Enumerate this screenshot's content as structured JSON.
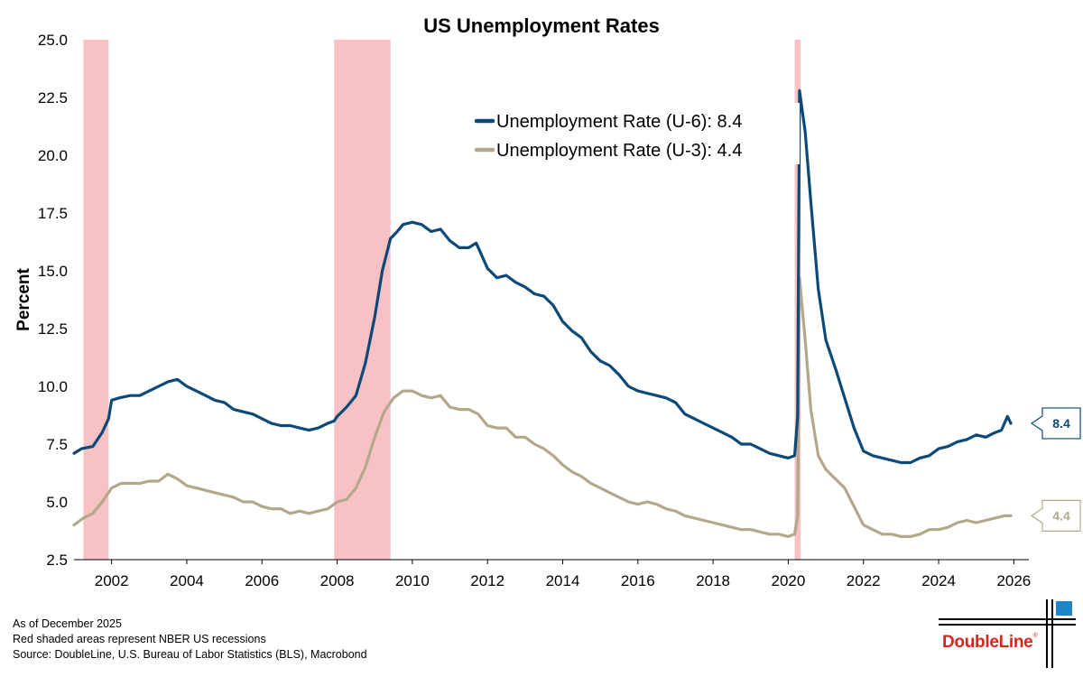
{
  "chart_data": {
    "type": "line",
    "title": "US Unemployment Rates",
    "xlabel": "",
    "ylabel": "Percent",
    "xlim": [
      2001.0,
      2026.4
    ],
    "ylim": [
      2.5,
      25.0
    ],
    "xticks": [
      2002,
      2004,
      2006,
      2008,
      2010,
      2012,
      2014,
      2016,
      2018,
      2020,
      2022,
      2024,
      2026
    ],
    "yticks": [
      "2.5",
      "5.0",
      "7.5",
      "10.0",
      "12.5",
      "15.0",
      "17.5",
      "20.0",
      "22.5",
      "25.0"
    ],
    "grid": false,
    "legend_position": "top-center",
    "recessions": [
      {
        "start": 2001.25,
        "end": 2001.92
      },
      {
        "start": 2007.92,
        "end": 2009.42
      },
      {
        "start": 2020.17,
        "end": 2020.33
      }
    ],
    "series": [
      {
        "name": "Unemployment Rate (U-6): 8.4",
        "color": "#0b4a78",
        "end_label": "8.4",
        "points": [
          [
            2001.0,
            7.1
          ],
          [
            2001.2,
            7.3
          ],
          [
            2001.5,
            7.4
          ],
          [
            2001.75,
            8.0
          ],
          [
            2001.92,
            8.6
          ],
          [
            2002.0,
            9.4
          ],
          [
            2002.2,
            9.5
          ],
          [
            2002.5,
            9.6
          ],
          [
            2002.75,
            9.6
          ],
          [
            2003.0,
            9.8
          ],
          [
            2003.25,
            10.0
          ],
          [
            2003.5,
            10.2
          ],
          [
            2003.75,
            10.3
          ],
          [
            2004.0,
            10.0
          ],
          [
            2004.25,
            9.8
          ],
          [
            2004.5,
            9.6
          ],
          [
            2004.75,
            9.4
          ],
          [
            2005.0,
            9.3
          ],
          [
            2005.25,
            9.0
          ],
          [
            2005.5,
            8.9
          ],
          [
            2005.75,
            8.8
          ],
          [
            2006.0,
            8.6
          ],
          [
            2006.25,
            8.4
          ],
          [
            2006.5,
            8.3
          ],
          [
            2006.75,
            8.3
          ],
          [
            2007.0,
            8.2
          ],
          [
            2007.25,
            8.1
          ],
          [
            2007.5,
            8.2
          ],
          [
            2007.75,
            8.4
          ],
          [
            2007.92,
            8.5
          ],
          [
            2008.0,
            8.7
          ],
          [
            2008.25,
            9.1
          ],
          [
            2008.5,
            9.6
          ],
          [
            2008.75,
            11.0
          ],
          [
            2009.0,
            13.0
          ],
          [
            2009.2,
            15.0
          ],
          [
            2009.42,
            16.4
          ],
          [
            2009.6,
            16.7
          ],
          [
            2009.75,
            17.0
          ],
          [
            2010.0,
            17.1
          ],
          [
            2010.25,
            17.0
          ],
          [
            2010.5,
            16.7
          ],
          [
            2010.75,
            16.8
          ],
          [
            2011.0,
            16.3
          ],
          [
            2011.25,
            16.0
          ],
          [
            2011.5,
            16.0
          ],
          [
            2011.7,
            16.2
          ],
          [
            2012.0,
            15.1
          ],
          [
            2012.25,
            14.7
          ],
          [
            2012.5,
            14.8
          ],
          [
            2012.75,
            14.5
          ],
          [
            2013.0,
            14.3
          ],
          [
            2013.25,
            14.0
          ],
          [
            2013.5,
            13.9
          ],
          [
            2013.75,
            13.5
          ],
          [
            2014.0,
            12.8
          ],
          [
            2014.25,
            12.4
          ],
          [
            2014.5,
            12.1
          ],
          [
            2014.75,
            11.5
          ],
          [
            2015.0,
            11.1
          ],
          [
            2015.25,
            10.9
          ],
          [
            2015.5,
            10.5
          ],
          [
            2015.75,
            10.0
          ],
          [
            2016.0,
            9.8
          ],
          [
            2016.25,
            9.7
          ],
          [
            2016.5,
            9.6
          ],
          [
            2016.75,
            9.5
          ],
          [
            2017.0,
            9.3
          ],
          [
            2017.25,
            8.8
          ],
          [
            2017.5,
            8.6
          ],
          [
            2017.75,
            8.4
          ],
          [
            2018.0,
            8.2
          ],
          [
            2018.25,
            8.0
          ],
          [
            2018.5,
            7.8
          ],
          [
            2018.75,
            7.5
          ],
          [
            2019.0,
            7.5
          ],
          [
            2019.25,
            7.3
          ],
          [
            2019.5,
            7.1
          ],
          [
            2019.75,
            7.0
          ],
          [
            2020.0,
            6.9
          ],
          [
            2020.17,
            7.0
          ],
          [
            2020.25,
            8.7
          ],
          [
            2020.3,
            22.8
          ],
          [
            2020.45,
            21.0
          ],
          [
            2020.6,
            18.0
          ],
          [
            2020.8,
            14.2
          ],
          [
            2021.0,
            12.0
          ],
          [
            2021.25,
            10.8
          ],
          [
            2021.5,
            9.5
          ],
          [
            2021.75,
            8.2
          ],
          [
            2022.0,
            7.2
          ],
          [
            2022.25,
            7.0
          ],
          [
            2022.5,
            6.9
          ],
          [
            2022.75,
            6.8
          ],
          [
            2023.0,
            6.7
          ],
          [
            2023.25,
            6.7
          ],
          [
            2023.5,
            6.9
          ],
          [
            2023.75,
            7.0
          ],
          [
            2024.0,
            7.3
          ],
          [
            2024.25,
            7.4
          ],
          [
            2024.5,
            7.6
          ],
          [
            2024.75,
            7.7
          ],
          [
            2025.0,
            7.9
          ],
          [
            2025.25,
            7.8
          ],
          [
            2025.5,
            8.0
          ],
          [
            2025.67,
            8.1
          ],
          [
            2025.83,
            8.7
          ],
          [
            2025.92,
            8.4
          ]
        ]
      },
      {
        "name": "Unemployment Rate (U-3): 4.4",
        "color": "#b4a88b",
        "end_label": "4.4",
        "points": [
          [
            2001.0,
            4.0
          ],
          [
            2001.25,
            4.3
          ],
          [
            2001.5,
            4.5
          ],
          [
            2001.75,
            5.0
          ],
          [
            2002.0,
            5.6
          ],
          [
            2002.25,
            5.8
          ],
          [
            2002.5,
            5.8
          ],
          [
            2002.75,
            5.8
          ],
          [
            2003.0,
            5.9
          ],
          [
            2003.25,
            5.9
          ],
          [
            2003.5,
            6.2
          ],
          [
            2003.75,
            6.0
          ],
          [
            2004.0,
            5.7
          ],
          [
            2004.25,
            5.6
          ],
          [
            2004.5,
            5.5
          ],
          [
            2004.75,
            5.4
          ],
          [
            2005.0,
            5.3
          ],
          [
            2005.25,
            5.2
          ],
          [
            2005.5,
            5.0
          ],
          [
            2005.75,
            5.0
          ],
          [
            2006.0,
            4.8
          ],
          [
            2006.25,
            4.7
          ],
          [
            2006.5,
            4.7
          ],
          [
            2006.75,
            4.5
          ],
          [
            2007.0,
            4.6
          ],
          [
            2007.25,
            4.5
          ],
          [
            2007.5,
            4.6
          ],
          [
            2007.75,
            4.7
          ],
          [
            2008.0,
            5.0
          ],
          [
            2008.25,
            5.1
          ],
          [
            2008.5,
            5.6
          ],
          [
            2008.75,
            6.5
          ],
          [
            2009.0,
            7.8
          ],
          [
            2009.25,
            8.9
          ],
          [
            2009.5,
            9.5
          ],
          [
            2009.75,
            9.8
          ],
          [
            2010.0,
            9.8
          ],
          [
            2010.25,
            9.6
          ],
          [
            2010.5,
            9.5
          ],
          [
            2010.75,
            9.6
          ],
          [
            2011.0,
            9.1
          ],
          [
            2011.25,
            9.0
          ],
          [
            2011.5,
            9.0
          ],
          [
            2011.75,
            8.8
          ],
          [
            2012.0,
            8.3
          ],
          [
            2012.25,
            8.2
          ],
          [
            2012.5,
            8.2
          ],
          [
            2012.75,
            7.8
          ],
          [
            2013.0,
            7.8
          ],
          [
            2013.25,
            7.5
          ],
          [
            2013.5,
            7.3
          ],
          [
            2013.75,
            7.0
          ],
          [
            2014.0,
            6.6
          ],
          [
            2014.25,
            6.3
          ],
          [
            2014.5,
            6.1
          ],
          [
            2014.75,
            5.8
          ],
          [
            2015.0,
            5.6
          ],
          [
            2015.25,
            5.4
          ],
          [
            2015.5,
            5.2
          ],
          [
            2015.75,
            5.0
          ],
          [
            2016.0,
            4.9
          ],
          [
            2016.25,
            5.0
          ],
          [
            2016.5,
            4.9
          ],
          [
            2016.75,
            4.7
          ],
          [
            2017.0,
            4.6
          ],
          [
            2017.25,
            4.4
          ],
          [
            2017.5,
            4.3
          ],
          [
            2017.75,
            4.2
          ],
          [
            2018.0,
            4.1
          ],
          [
            2018.25,
            4.0
          ],
          [
            2018.5,
            3.9
          ],
          [
            2018.75,
            3.8
          ],
          [
            2019.0,
            3.8
          ],
          [
            2019.25,
            3.7
          ],
          [
            2019.5,
            3.6
          ],
          [
            2019.75,
            3.6
          ],
          [
            2020.0,
            3.5
          ],
          [
            2020.17,
            3.6
          ],
          [
            2020.25,
            4.4
          ],
          [
            2020.3,
            14.7
          ],
          [
            2020.45,
            12.0
          ],
          [
            2020.6,
            9.0
          ],
          [
            2020.8,
            7.0
          ],
          [
            2021.0,
            6.4
          ],
          [
            2021.25,
            6.0
          ],
          [
            2021.5,
            5.6
          ],
          [
            2021.75,
            4.8
          ],
          [
            2022.0,
            4.0
          ],
          [
            2022.25,
            3.8
          ],
          [
            2022.5,
            3.6
          ],
          [
            2022.75,
            3.6
          ],
          [
            2023.0,
            3.5
          ],
          [
            2023.25,
            3.5
          ],
          [
            2023.5,
            3.6
          ],
          [
            2023.75,
            3.8
          ],
          [
            2024.0,
            3.8
          ],
          [
            2024.25,
            3.9
          ],
          [
            2024.5,
            4.1
          ],
          [
            2024.75,
            4.2
          ],
          [
            2025.0,
            4.1
          ],
          [
            2025.25,
            4.2
          ],
          [
            2025.5,
            4.3
          ],
          [
            2025.75,
            4.4
          ],
          [
            2025.92,
            4.4
          ]
        ]
      }
    ]
  },
  "footnotes": {
    "as_of": "As of December 2025",
    "recession_note": "Red shaded areas represent NBER US recessions",
    "source": "Source: DoubleLine, U.S. Bureau of Labor Statistics (BLS), Macrobond"
  },
  "logo": {
    "text": "DoubleLine",
    "mark": "®",
    "color": "#d7261e",
    "accent_color": "#1f86c8"
  }
}
